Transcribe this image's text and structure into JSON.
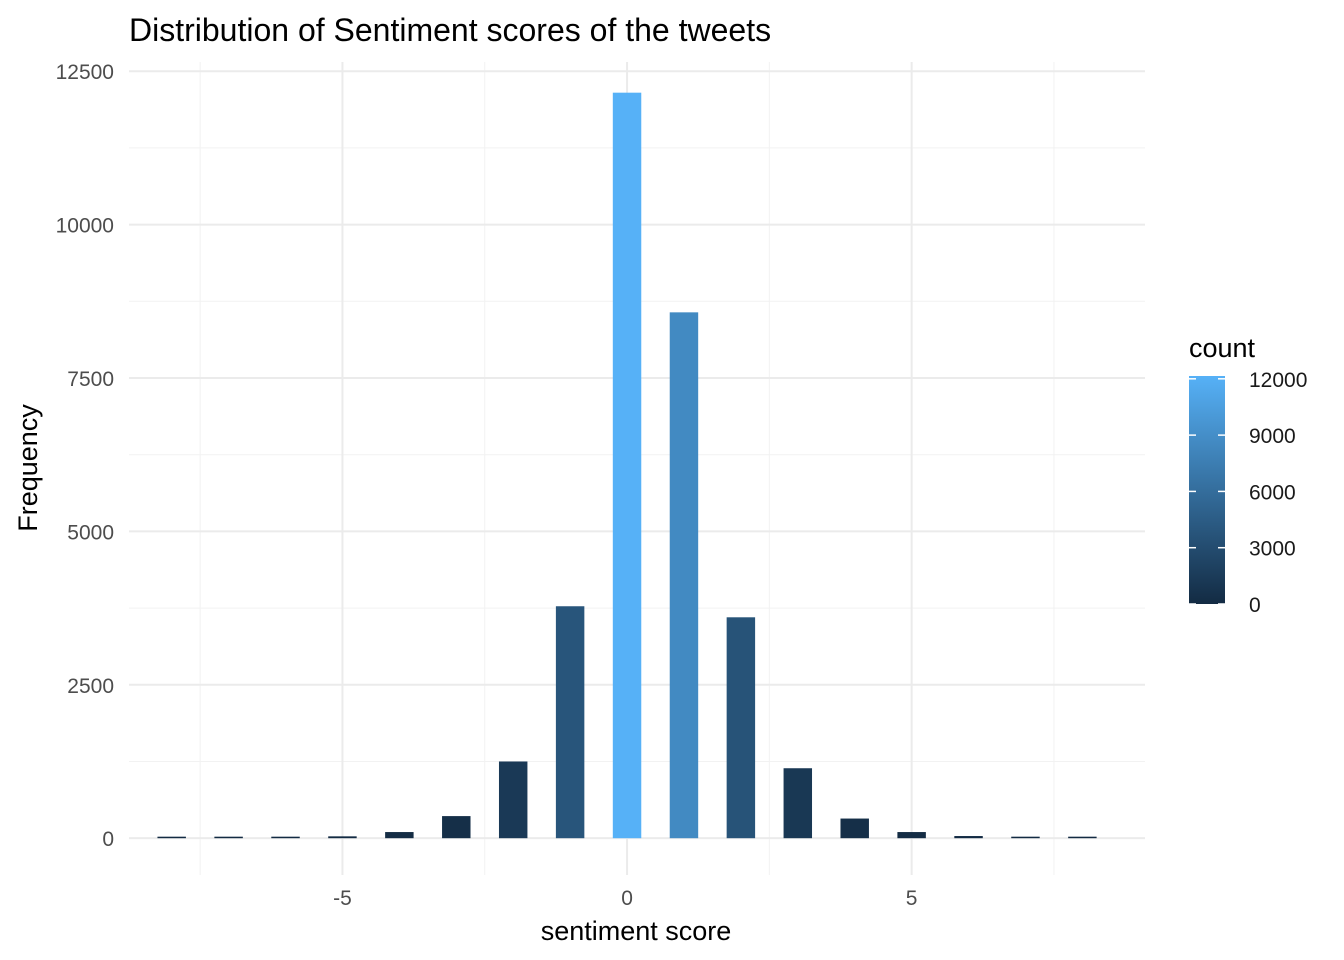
{
  "chart_data": {
    "type": "bar",
    "title": "Distribution of Sentiment scores of the tweets",
    "xlabel": "sentiment score",
    "ylabel": "Frequency",
    "x": [
      -8,
      -7,
      -6,
      -5,
      -4,
      -3,
      -2,
      -1,
      0,
      1,
      2,
      3,
      4,
      5,
      6,
      7,
      8
    ],
    "values": [
      8,
      10,
      12,
      30,
      100,
      360,
      1250,
      3780,
      12150,
      8570,
      3600,
      1140,
      320,
      100,
      35,
      12,
      10
    ],
    "xlim": [
      -8.75,
      9.1
    ],
    "ylim": [
      -600,
      12650
    ],
    "xticks": [
      -5,
      0,
      5
    ],
    "xtick_labels": [
      "-5",
      "0",
      "5"
    ],
    "yticks": [
      0,
      2500,
      5000,
      7500,
      10000,
      12500
    ],
    "ytick_labels": [
      "0",
      "2500",
      "5000",
      "7500",
      "10000",
      "12500"
    ],
    "grid": true,
    "legend": {
      "title": "count",
      "position": "right",
      "type": "colorbar",
      "min": 0,
      "max": 12150,
      "low_color": "#132B43",
      "high_color": "#56B1F7",
      "ticks": [
        0,
        3000,
        6000,
        9000,
        12000
      ],
      "tick_labels": [
        "0",
        "3000",
        "6000",
        "9000",
        "12000"
      ]
    }
  }
}
